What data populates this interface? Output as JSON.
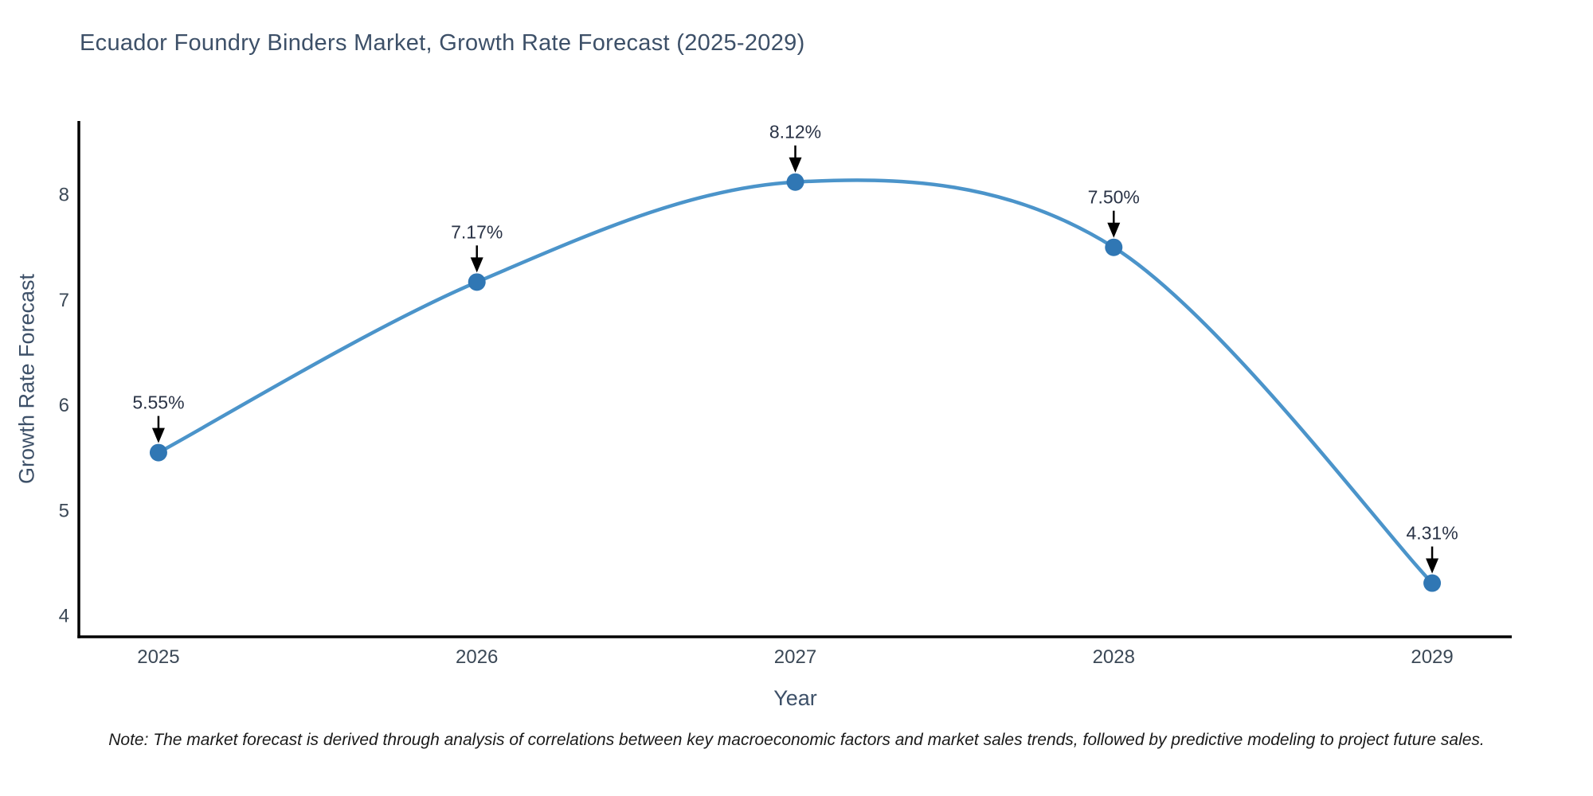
{
  "title": "Ecuador Foundry Binders Market, Growth Rate Forecast (2025-2029)",
  "note": "Note: The market forecast is derived through analysis of correlations between key macroeconomic factors and market sales trends, followed by predictive modeling to project future sales.",
  "chart_data": {
    "type": "line",
    "title": "Ecuador Foundry Binders Market, Growth Rate Forecast (2025-2029)",
    "xlabel": "Year",
    "ylabel": "Growth Rate Forecast",
    "x": [
      2025,
      2026,
      2027,
      2028,
      2029
    ],
    "values": [
      5.55,
      7.17,
      8.12,
      7.5,
      4.31
    ],
    "point_labels": [
      "5.55%",
      "7.17%",
      "8.12%",
      "7.50%",
      "4.31%"
    ],
    "x_ticks": [
      "2025",
      "2026",
      "2027",
      "2028",
      "2029"
    ],
    "y_ticks": [
      4,
      5,
      6,
      7,
      8
    ],
    "xlim": [
      2024.75,
      2029.25
    ],
    "ylim": [
      3.8,
      8.7
    ],
    "grid": false,
    "legend": "none",
    "line_shape": "spline",
    "colors": {
      "line": "#4b94ca",
      "marker": "#3077b4",
      "annotation_arrow": "#000000",
      "annotation_text": "#2a3346",
      "axis_line": "#000000",
      "tick_text": "#3b4856"
    }
  }
}
